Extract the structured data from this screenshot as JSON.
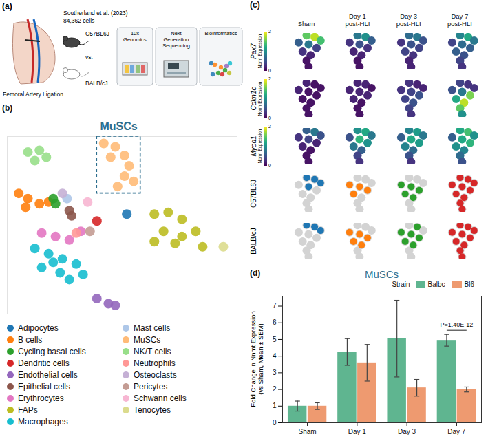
{
  "diagram": {
    "letter": "(a)",
    "citation": "Southerland et al. (2023)",
    "cell_count": "84,362 cells",
    "procedure": "Femoral Artery Ligation",
    "strains": [
      "C57BL6J",
      "BALB/cJ"
    ],
    "versus": "vs.",
    "steps": [
      "10x Genomics",
      "Next Generation Sequencing",
      "Bioinformatics"
    ]
  },
  "chart_data": [
    {
      "type": "scatter",
      "letter": "(b)",
      "annotation": {
        "text": "MuSCs",
        "color": "#2d6e8e"
      },
      "xlim": [
        0,
        100
      ],
      "ylim": [
        0,
        103
      ],
      "tick_labels": false,
      "legend": "bottom",
      "series": [
        {
          "name": "Adipocytes",
          "color": "#1f77b4",
          "x": [
            52
          ],
          "y": [
            58
          ]
        },
        {
          "name": "B cells",
          "color": "#ff7f0e",
          "x": [
            5,
            9,
            14,
            18,
            8
          ],
          "y": [
            70,
            67,
            64,
            65,
            62
          ]
        },
        {
          "name": "Cycling basal cells",
          "color": "#2ca02c",
          "x": [
            20,
            21
          ],
          "y": [
            67,
            64
          ]
        },
        {
          "name": "Dendritic cells",
          "color": "#d62728",
          "x": [
            39
          ],
          "y": [
            54
          ]
        },
        {
          "name": "Endothelial cells",
          "color": "#9467bd",
          "x": [
            39,
            44,
            47
          ],
          "y": [
            9,
            6,
            5
          ]
        },
        {
          "name": "Epithelial cells",
          "color": "#8c564b",
          "x": [
            27,
            28
          ],
          "y": [
            60,
            57
          ]
        },
        {
          "name": "Erythrocytes",
          "color": "#e377c2",
          "x": [
            15,
            21,
            27,
            32
          ],
          "y": [
            47,
            45,
            43,
            48
          ]
        },
        {
          "name": "FAPs",
          "color": "#bcbd22",
          "x": [
            64,
            70,
            76,
            68,
            76,
            82,
            73,
            85,
            64
          ],
          "y": [
            58,
            59,
            55,
            48,
            45,
            48,
            41,
            39,
            42
          ]
        },
        {
          "name": "Macrophages",
          "color": "#17becf",
          "x": [
            12,
            18,
            24,
            30,
            15,
            23,
            33,
            27,
            20
          ],
          "y": [
            38,
            35,
            32,
            29,
            27,
            24,
            23,
            20,
            30
          ]
        },
        {
          "name": "Mast cells",
          "color": "#aec7e8",
          "x": [
            26
          ],
          "y": [
            67
          ]
        },
        {
          "name": "MuSCs",
          "color": "#ffbb78",
          "x": [
            42,
            47,
            51,
            53,
            51,
            48,
            45,
            55
          ],
          "y": [
            99,
            97,
            92,
            86,
            80,
            74,
            91,
            77
          ]
        },
        {
          "name": "NK/T cells",
          "color": "#98df8a",
          "x": [
            9,
            14,
            17,
            12
          ],
          "y": [
            94,
            95,
            91,
            89
          ]
        },
        {
          "name": "Neutrophils",
          "color": "#ff9896",
          "x": [
            30
          ],
          "y": [
            47
          ]
        },
        {
          "name": "Osteoclasts",
          "color": "#c5b0d5",
          "x": [
            24
          ],
          "y": [
            70
          ]
        },
        {
          "name": "Pericytes",
          "color": "#c49c94",
          "x": [
            36
          ],
          "y": [
            48
          ]
        },
        {
          "name": "Schwann cells",
          "color": "#f7b6d2",
          "x": [
            35
          ],
          "y": [
            65
          ]
        },
        {
          "name": "Tenocytes",
          "color": "#dbdb8d",
          "x": [
            94
          ],
          "y": [
            39
          ]
        }
      ]
    },
    {
      "type": "feature_plot",
      "letter": "(c)",
      "columns": [
        "Sham",
        "Day 1 post-HLI",
        "Day 3 post-HLI",
        "Day 7 post-HLI"
      ],
      "xlim": [
        0,
        10
      ],
      "ylim": [
        0,
        10
      ],
      "tick_labels": false,
      "shape_x": [
        5,
        7,
        8.5,
        3,
        5.5,
        7.5,
        4,
        6,
        5,
        5.5
      ],
      "shape_y": [
        9.5,
        9,
        8,
        7.5,
        7,
        6,
        5,
        4,
        2.5,
        0.8
      ],
      "colorbar": {
        "label": "Norm Expression",
        "range": [
          0,
          2
        ],
        "ticks": [
          0,
          2
        ]
      },
      "series": [
        {
          "name": "Pax7",
          "type": "expression",
          "values": [
            [
              1.5,
              1.8,
              1.4,
              0.6,
              0.8,
              0.4,
              0.3,
              0.2,
              0.1,
              0.1
            ],
            [
              0.8,
              1.0,
              0.6,
              0.3,
              0.5,
              0.3,
              0.2,
              0.2,
              0.1,
              0.1
            ],
            [
              0.7,
              0.8,
              0.5,
              0.3,
              0.5,
              0.4,
              0.4,
              0.3,
              0.2,
              0.2
            ],
            [
              0.9,
              1.2,
              0.8,
              0.4,
              0.7,
              0.6,
              0.6,
              0.5,
              0.4,
              0.3
            ]
          ]
        },
        {
          "name": "Cdkn1c",
          "type": "expression",
          "values": [
            [
              0.2,
              0.1,
              0.1,
              0.2,
              0.1,
              0.1,
              0.1,
              0.1,
              0.1,
              0.1
            ],
            [
              0.2,
              0.2,
              0.1,
              0.2,
              0.2,
              0.2,
              0.2,
              0.1,
              0.1,
              0.1
            ],
            [
              0.3,
              0.2,
              0.2,
              0.3,
              0.4,
              0.5,
              0.4,
              0.5,
              0.4,
              0.3
            ],
            [
              0.4,
              0.3,
              0.3,
              0.5,
              0.8,
              1.6,
              1.2,
              1.8,
              1.5,
              1.0
            ]
          ]
        },
        {
          "name": "Myod1",
          "type": "expression",
          "values": [
            [
              0.6,
              0.8,
              0.5,
              0.3,
              0.4,
              0.2,
              0.2,
              0.1,
              0.1,
              0.1
            ],
            [
              1.0,
              1.2,
              0.8,
              0.5,
              1.3,
              1.0,
              0.8,
              0.6,
              0.4,
              0.3
            ],
            [
              0.9,
              1.1,
              0.8,
              0.6,
              1.2,
              1.1,
              0.9,
              0.7,
              0.5,
              0.3
            ],
            [
              1.2,
              1.4,
              1.0,
              0.6,
              1.2,
              1.3,
              1.0,
              0.9,
              0.7,
              0.5
            ]
          ]
        },
        {
          "name": "C57BL6J",
          "type": "cells",
          "colors": [
            "#1f77b4",
            "#ff7f0e",
            "#2ca02c",
            "#d62728"
          ],
          "values": [
            [
              1,
              1,
              1,
              0,
              1,
              0,
              0,
              0,
              0,
              0
            ],
            [
              0,
              0,
              0,
              1,
              1,
              1,
              1,
              0,
              0,
              0
            ],
            [
              0,
              0,
              0,
              1,
              1,
              1,
              1,
              1,
              0,
              0
            ],
            [
              1,
              1,
              1,
              1,
              1,
              1,
              1,
              1,
              1,
              1
            ]
          ]
        },
        {
          "name": "BALB/cJ",
          "type": "cells",
          "colors": [
            "#1f77b4",
            "#ff7f0e",
            "#2ca02c",
            "#d62728"
          ],
          "values": [
            [
              1,
              1,
              1,
              0,
              0,
              0,
              0,
              0,
              0,
              0
            ],
            [
              0,
              0,
              0,
              1,
              1,
              1,
              1,
              1,
              0,
              0
            ],
            [
              0,
              1,
              0,
              1,
              1,
              1,
              1,
              1,
              0,
              0
            ],
            [
              1,
              1,
              1,
              1,
              1,
              1,
              1,
              1,
              1,
              1
            ]
          ]
        }
      ]
    },
    {
      "type": "bar",
      "letter": "(d)",
      "title": "MuSCs",
      "color": "#2d6e8e",
      "ylabel": "Fold Change in Nnmt Expression (vs Sham, Mean ± SEM)",
      "categories": [
        "Sham",
        "Day 1",
        "Day 3",
        "Day 7"
      ],
      "ylim": [
        0,
        7.6
      ],
      "yticks": [
        0,
        1,
        2,
        3,
        4,
        5,
        6,
        7
      ],
      "grid": false,
      "legend": "top",
      "legend_title": "Strain",
      "series": [
        {
          "name": "Balbc",
          "color": "#5fb590",
          "values": [
            1.0,
            4.25,
            5.05,
            4.95
          ],
          "errors": [
            0.3,
            0.8,
            2.3,
            0.35
          ]
        },
        {
          "name": "Bl6",
          "color": "#ee9a70",
          "values": [
            1.0,
            3.6,
            2.1,
            2.0
          ],
          "errors": [
            0.2,
            1.1,
            0.5,
            0.15
          ]
        }
      ],
      "annotations": [
        {
          "text": "P=1.40E-12",
          "category": "Day 7"
        }
      ]
    }
  ]
}
